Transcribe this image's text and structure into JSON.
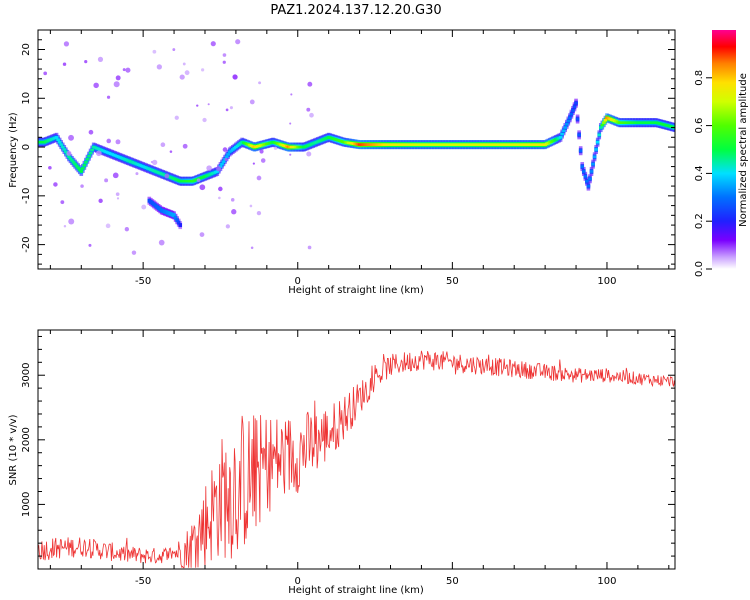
{
  "title": "PAZ1.2024.137.12.20.G30",
  "chart_data": [
    {
      "type": "heatmap",
      "xlabel": "Height of straight line (km)",
      "ylabel": "Frequency (Hz)",
      "xlim": [
        -84,
        122
      ],
      "ylim": [
        -25,
        24
      ],
      "xticks": [
        -50,
        0,
        50,
        100
      ],
      "yticks": [
        -20,
        -10,
        0,
        10,
        20
      ],
      "colorbar": {
        "label": "Normalized spectral amplitude",
        "range": [
          0,
          1
        ],
        "ticks": [
          "0.0",
          "0.2",
          "0.4",
          "0.6",
          "0.8"
        ]
      },
      "ridge": [
        {
          "x": -82,
          "y": 1,
          "amp": 0.5
        },
        {
          "x": -78,
          "y": 2,
          "amp": 0.4
        },
        {
          "x": -74,
          "y": -2,
          "amp": 0.45
        },
        {
          "x": -70,
          "y": -5,
          "amp": 0.5
        },
        {
          "x": -66,
          "y": 0,
          "amp": 0.45
        },
        {
          "x": -62,
          "y": -1,
          "amp": 0.4
        },
        {
          "x": -58,
          "y": -2,
          "amp": 0.4
        },
        {
          "x": -54,
          "y": -3,
          "amp": 0.45
        },
        {
          "x": -50,
          "y": -4,
          "amp": 0.4
        },
        {
          "x": -46,
          "y": -5,
          "amp": 0.45
        },
        {
          "x": -42,
          "y": -6,
          "amp": 0.45
        },
        {
          "x": -38,
          "y": -7,
          "amp": 0.5
        },
        {
          "x": -34,
          "y": -7,
          "amp": 0.55
        },
        {
          "x": -30,
          "y": -6,
          "amp": 0.5
        },
        {
          "x": -26,
          "y": -5,
          "amp": 0.4
        },
        {
          "x": -22,
          "y": -1,
          "amp": 0.35
        },
        {
          "x": -18,
          "y": 1,
          "amp": 0.45
        },
        {
          "x": -14,
          "y": 0,
          "amp": 0.8
        },
        {
          "x": -8,
          "y": 1,
          "amp": 0.5
        },
        {
          "x": -3,
          "y": 0,
          "amp": 0.85
        },
        {
          "x": 2,
          "y": 0,
          "amp": 0.5
        },
        {
          "x": 6,
          "y": 1,
          "amp": 0.45
        },
        {
          "x": 10,
          "y": 2,
          "amp": 0.5
        },
        {
          "x": 15,
          "y": 1,
          "amp": 0.6
        },
        {
          "x": 20,
          "y": 0.5,
          "amp": 0.9
        },
        {
          "x": 30,
          "y": 0.5,
          "amp": 0.75
        },
        {
          "x": 40,
          "y": 0.5,
          "amp": 0.7
        },
        {
          "x": 50,
          "y": 0.5,
          "amp": 0.7
        },
        {
          "x": 60,
          "y": 0.5,
          "amp": 0.72
        },
        {
          "x": 70,
          "y": 0.5,
          "amp": 0.72
        },
        {
          "x": 80,
          "y": 0.5,
          "amp": 0.75
        },
        {
          "x": 85,
          "y": 2,
          "amp": 0.4
        },
        {
          "x": 88,
          "y": 6,
          "amp": 0.3
        },
        {
          "x": 90,
          "y": 9,
          "amp": 0.25
        },
        {
          "x": 92,
          "y": -4,
          "amp": 0.3
        },
        {
          "x": 94,
          "y": -8,
          "amp": 0.3
        },
        {
          "x": 96,
          "y": -2,
          "amp": 0.35
        },
        {
          "x": 98,
          "y": 4,
          "amp": 0.45
        },
        {
          "x": 100,
          "y": 6,
          "amp": 0.85
        },
        {
          "x": 104,
          "y": 5,
          "amp": 0.6
        },
        {
          "x": 110,
          "y": 5,
          "amp": 0.5
        },
        {
          "x": 116,
          "y": 5,
          "amp": 0.5
        },
        {
          "x": 122,
          "y": 4,
          "amp": 0.5
        }
      ],
      "secondary_branch": [
        {
          "x": -48,
          "y": -11,
          "amp": 0.25
        },
        {
          "x": -44,
          "y": -13,
          "amp": 0.3
        },
        {
          "x": -40,
          "y": -14,
          "amp": 0.35
        },
        {
          "x": -38,
          "y": -16,
          "amp": 0.2
        }
      ]
    },
    {
      "type": "line",
      "xlabel": "Height of straight line (km)",
      "ylabel": "SNR (10 * v/v)",
      "xlim": [
        -84,
        122
      ],
      "ylim": [
        0,
        3700
      ],
      "xticks": [
        -50,
        0,
        50,
        100
      ],
      "yticks": [
        1000,
        2000,
        3000
      ],
      "series": [
        {
          "color": "#ee3333",
          "trend": [
            {
              "x": -84,
              "y": 300
            },
            {
              "x": -70,
              "y": 350
            },
            {
              "x": -55,
              "y": 220
            },
            {
              "x": -45,
              "y": 200
            },
            {
              "x": -35,
              "y": 300
            },
            {
              "x": -30,
              "y": 700
            },
            {
              "x": -25,
              "y": 1100
            },
            {
              "x": -20,
              "y": 1300
            },
            {
              "x": -15,
              "y": 1400
            },
            {
              "x": -10,
              "y": 1650
            },
            {
              "x": -5,
              "y": 1700
            },
            {
              "x": 0,
              "y": 1800
            },
            {
              "x": 5,
              "y": 1950
            },
            {
              "x": 10,
              "y": 2100
            },
            {
              "x": 15,
              "y": 2350
            },
            {
              "x": 20,
              "y": 2650
            },
            {
              "x": 25,
              "y": 2950
            },
            {
              "x": 30,
              "y": 3150
            },
            {
              "x": 40,
              "y": 3250
            },
            {
              "x": 50,
              "y": 3200
            },
            {
              "x": 60,
              "y": 3150
            },
            {
              "x": 70,
              "y": 3100
            },
            {
              "x": 80,
              "y": 3050
            },
            {
              "x": 90,
              "y": 3000
            },
            {
              "x": 100,
              "y": 3000
            },
            {
              "x": 110,
              "y": 2950
            },
            {
              "x": 122,
              "y": 2900
            }
          ],
          "noise_amplitude": [
            {
              "x": -84,
              "y": 180
            },
            {
              "x": -40,
              "y": 120
            },
            {
              "x": -30,
              "y": 700
            },
            {
              "x": -20,
              "y": 1200
            },
            {
              "x": -10,
              "y": 800
            },
            {
              "x": 10,
              "y": 450
            },
            {
              "x": 25,
              "y": 180
            },
            {
              "x": 122,
              "y": 90
            }
          ]
        }
      ]
    }
  ]
}
